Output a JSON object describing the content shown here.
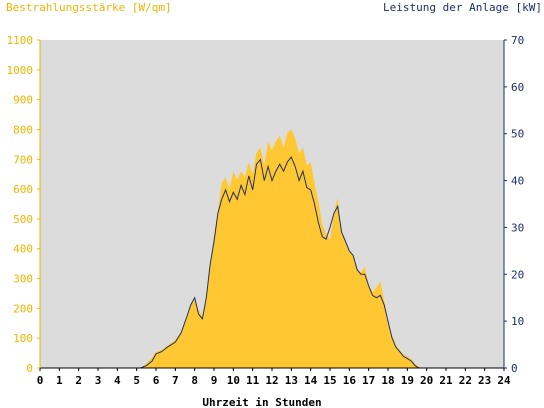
{
  "colors": {
    "background": "#ffffff",
    "plot_background": "#dcdcdc",
    "irradiance": "#ffc832",
    "irradiance_axis": "#f0b400",
    "power": "#1e3264",
    "power_axis": "#1e2d6e",
    "axis": "#000000"
  },
  "chart_data": {
    "type": "area",
    "title_left": "Bestrahlungsstärke [W/qm]",
    "title_right": "Leistung der Anlage [kW]",
    "xlabel": "Uhrzeit in Stunden",
    "xlim": [
      0,
      24
    ],
    "ylim_left": [
      0,
      1100
    ],
    "ylim_right": [
      0,
      70
    ],
    "xticks": [
      "0",
      "1",
      "2",
      "3",
      "4",
      "5",
      "6",
      "7",
      "8",
      "9",
      "10",
      "11",
      "12",
      "13",
      "14",
      "15",
      "16",
      "17",
      "18",
      "19",
      "20",
      "21",
      "22",
      "23",
      "24"
    ],
    "yticks_left": [
      "0",
      "100",
      "200",
      "300",
      "400",
      "500",
      "600",
      "700",
      "800",
      "900",
      "1000",
      "1100"
    ],
    "yticks_right": [
      "0",
      "10",
      "20",
      "30",
      "40",
      "50",
      "60",
      "70"
    ],
    "grid": false,
    "series": [
      {
        "name": "Bestrahlungsstärke [W/qm]",
        "axis": "left",
        "style": "area",
        "x": [
          0,
          5.2,
          5.5,
          5.8,
          6.0,
          6.3,
          6.6,
          6.8,
          7.0,
          7.3,
          7.6,
          7.8,
          8.0,
          8.2,
          8.4,
          8.6,
          8.8,
          9.0,
          9.2,
          9.4,
          9.6,
          9.8,
          10.0,
          10.2,
          10.4,
          10.6,
          10.8,
          11.0,
          11.2,
          11.4,
          11.6,
          11.8,
          12.0,
          12.2,
          12.4,
          12.6,
          12.8,
          13.0,
          13.2,
          13.4,
          13.6,
          13.8,
          14.0,
          14.2,
          14.4,
          14.6,
          14.8,
          15.0,
          15.2,
          15.4,
          15.6,
          15.8,
          16.0,
          16.2,
          16.4,
          16.6,
          16.8,
          17.0,
          17.2,
          17.4,
          17.6,
          17.8,
          18.0,
          18.2,
          18.4,
          18.6,
          18.8,
          19.0,
          19.2,
          19.4,
          19.6,
          19.8,
          20.0,
          20.2,
          24
        ],
        "values": [
          0,
          0,
          15,
          35,
          55,
          60,
          75,
          85,
          95,
          120,
          175,
          215,
          240,
          195,
          175,
          240,
          350,
          440,
          530,
          620,
          640,
          600,
          660,
          630,
          660,
          640,
          690,
          650,
          720,
          740,
          680,
          760,
          730,
          760,
          780,
          740,
          790,
          800,
          770,
          720,
          740,
          680,
          690,
          620,
          560,
          480,
          450,
          430,
          520,
          570,
          450,
          420,
          390,
          380,
          330,
          320,
          340,
          280,
          255,
          270,
          290,
          230,
          160,
          110,
          80,
          60,
          45,
          40,
          30,
          15,
          5,
          0,
          0,
          0,
          0
        ],
        "color": "#ffc832"
      },
      {
        "name": "Leistung der Anlage [kW]",
        "axis": "right",
        "style": "line",
        "x": [
          0,
          5.2,
          5.5,
          5.8,
          6.0,
          6.3,
          6.6,
          6.8,
          7.0,
          7.3,
          7.6,
          7.8,
          8.0,
          8.2,
          8.4,
          8.6,
          8.8,
          9.0,
          9.2,
          9.4,
          9.6,
          9.8,
          10.0,
          10.2,
          10.4,
          10.6,
          10.8,
          11.0,
          11.2,
          11.4,
          11.6,
          11.8,
          12.0,
          12.2,
          12.4,
          12.6,
          12.8,
          13.0,
          13.2,
          13.4,
          13.6,
          13.8,
          14.0,
          14.2,
          14.4,
          14.6,
          14.8,
          15.0,
          15.2,
          15.4,
          15.6,
          15.8,
          16.0,
          16.2,
          16.4,
          16.6,
          16.8,
          17.0,
          17.2,
          17.4,
          17.6,
          17.8,
          18.0,
          18.2,
          18.4,
          18.6,
          18.8,
          19.0,
          19.2,
          19.4,
          19.6,
          19.8,
          20.0,
          20.2,
          24
        ],
        "values": [
          0,
          0,
          0.5,
          1.5,
          3,
          3.5,
          4.5,
          5,
          5.5,
          7.5,
          11,
          13.5,
          15,
          11.5,
          10.5,
          15,
          22,
          27,
          33,
          36,
          38,
          35.5,
          37.5,
          36,
          39,
          37,
          41,
          38,
          43.5,
          44.5,
          40,
          43,
          40,
          42,
          43.5,
          42,
          44,
          45,
          43,
          40,
          42,
          38.5,
          38,
          35,
          31,
          28,
          27.5,
          30,
          33,
          34.5,
          29,
          27,
          25,
          24,
          21,
          20,
          20,
          17.5,
          15.5,
          15,
          15.5,
          13.5,
          10,
          6.5,
          4.5,
          3.5,
          2.5,
          2,
          1.5,
          0.5,
          0,
          0,
          0,
          0,
          0
        ],
        "color": "#1e3264"
      }
    ]
  }
}
